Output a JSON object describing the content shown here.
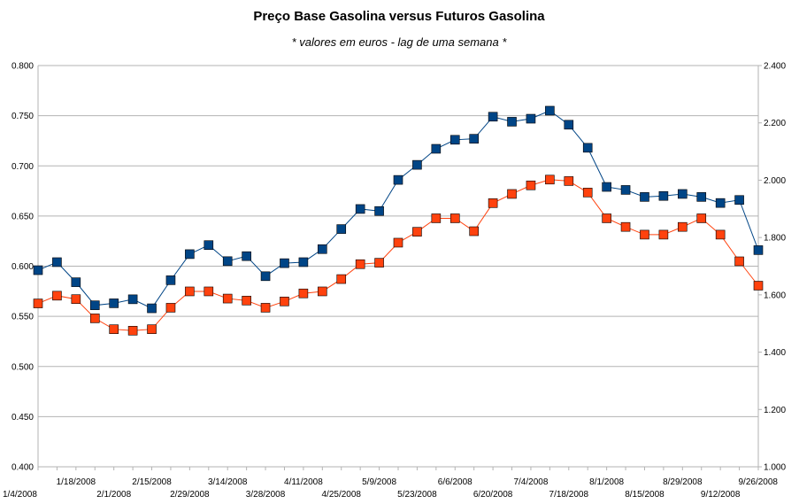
{
  "chart_data": {
    "type": "line",
    "title": "Preço Base Gasolina versus Futuros Gasolina",
    "subtitle": "* valores em euros - lag de uma semana *",
    "y_left": {
      "min": 0.4,
      "max": 0.8,
      "step": 0.05,
      "ticks": [
        "0.400",
        "0.450",
        "0.500",
        "0.550",
        "0.600",
        "0.650",
        "0.700",
        "0.750",
        "0.800"
      ]
    },
    "y_right": {
      "min": 1.0,
      "max": 2.4,
      "step": 0.2,
      "ticks": [
        "1.000",
        "1.200",
        "1.400",
        "1.600",
        "1.800",
        "2.000",
        "2.200",
        "2.400"
      ]
    },
    "grid": true,
    "legend": "none",
    "x": [
      "1/4/2008",
      "1/11/2008",
      "1/18/2008",
      "1/25/2008",
      "2/1/2008",
      "2/8/2008",
      "2/15/2008",
      "2/22/2008",
      "2/29/2008",
      "3/7/2008",
      "3/14/2008",
      "3/21/2008",
      "3/28/2008",
      "4/4/2008",
      "4/11/2008",
      "4/18/2008",
      "4/25/2008",
      "5/2/2008",
      "5/9/2008",
      "5/16/2008",
      "5/23/2008",
      "5/30/2008",
      "6/6/2008",
      "6/13/2008",
      "6/20/2008",
      "6/27/2008",
      "7/4/2008",
      "7/11/2008",
      "7/18/2008",
      "7/25/2008",
      "8/1/2008",
      "8/8/2008",
      "8/15/2008",
      "8/22/2008",
      "8/29/2008",
      "9/5/2008",
      "9/12/2008",
      "9/19/2008",
      "9/26/2008"
    ],
    "x_tick_labels": {
      "upper": [
        "1/18/2008",
        "2/15/2008",
        "3/14/2008",
        "4/11/2008",
        "5/9/2008",
        "6/6/2008",
        "7/4/2008",
        "8/1/2008",
        "8/29/2008",
        "9/26/2008"
      ],
      "lower": [
        "1/4/2008",
        "2/1/2008",
        "2/29/2008",
        "3/28/2008",
        "4/25/2008",
        "5/23/2008",
        "6/20/2008",
        "7/18/2008",
        "8/15/2008",
        "9/12/2008"
      ]
    },
    "series": [
      {
        "axis": "left",
        "color": "#004586",
        "values": [
          0.596,
          0.604,
          0.584,
          0.561,
          0.563,
          0.567,
          0.558,
          0.586,
          0.612,
          0.621,
          0.605,
          0.61,
          0.59,
          0.603,
          0.604,
          0.617,
          0.637,
          0.657,
          0.655,
          0.686,
          0.701,
          0.717,
          0.726,
          0.727,
          0.749,
          0.744,
          0.747,
          0.755,
          0.741,
          0.718,
          0.679,
          0.676,
          0.669,
          0.67,
          0.672,
          0.669,
          0.663,
          0.666,
          0.616
        ]
      },
      {
        "axis": "right",
        "color": "#ff420e",
        "values": [
          1.57,
          1.597,
          1.585,
          1.518,
          1.48,
          1.475,
          1.48,
          1.555,
          1.612,
          1.612,
          1.587,
          1.58,
          1.555,
          1.577,
          1.605,
          1.612,
          1.655,
          1.707,
          1.712,
          1.782,
          1.82,
          1.867,
          1.867,
          1.822,
          1.92,
          1.952,
          1.982,
          2.002,
          1.997,
          1.957,
          1.867,
          1.837,
          1.81,
          1.81,
          1.837,
          1.867,
          1.81,
          1.717,
          1.632
        ]
      }
    ]
  }
}
